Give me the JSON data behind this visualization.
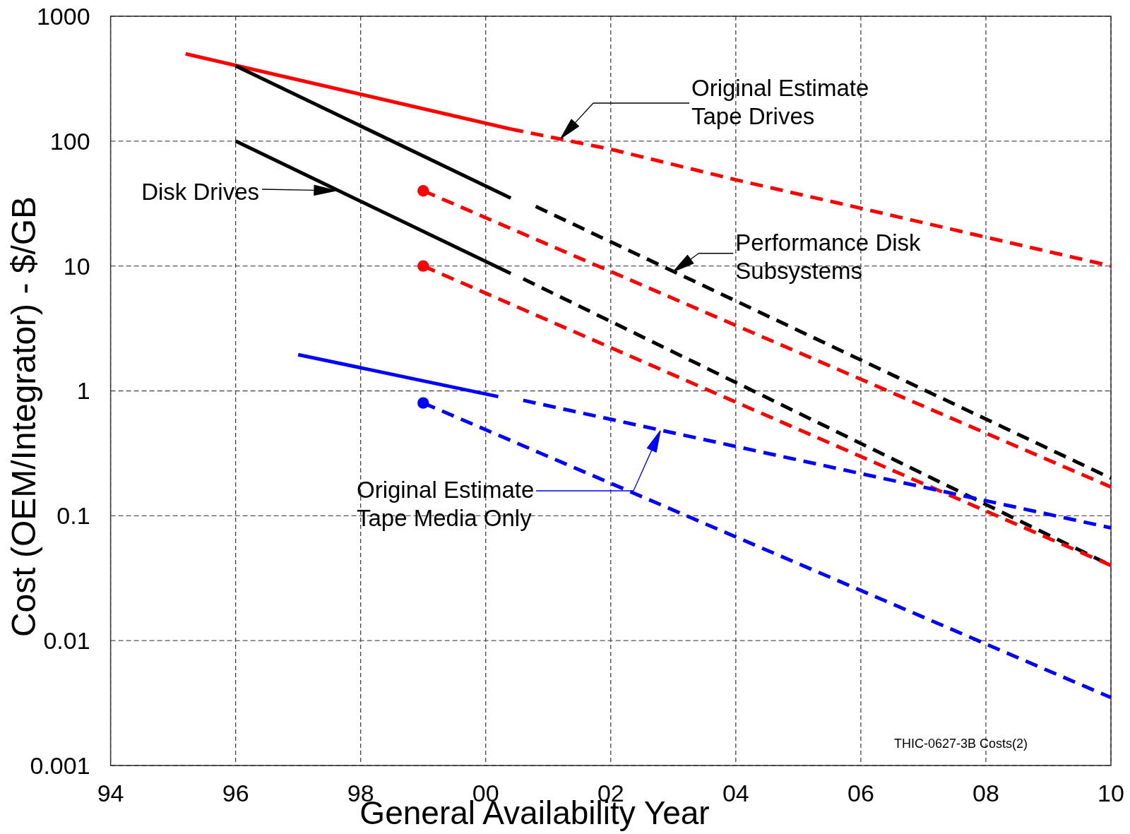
{
  "chart_data": {
    "type": "line",
    "xlabel": "General Availability Year",
    "ylabel": "Cost (OEM/Integrator) - $/GB",
    "log": "y",
    "grid": true,
    "xlim": [
      1994,
      2010
    ],
    "xticks": [
      {
        "value": 1994,
        "label": "94"
      },
      {
        "value": 1996,
        "label": "96"
      },
      {
        "value": 1998,
        "label": "98"
      },
      {
        "value": 2000,
        "label": "00"
      },
      {
        "value": 2002,
        "label": "02"
      },
      {
        "value": 2004,
        "label": "04"
      },
      {
        "value": 2006,
        "label": "06"
      },
      {
        "value": 2008,
        "label": "08"
      },
      {
        "value": 2010,
        "label": "10"
      }
    ],
    "ylim": [
      0.001,
      1000
    ],
    "yticks": [
      0.001,
      0.01,
      0.1,
      1,
      10,
      100,
      1000
    ],
    "series": [
      {
        "color": "#ff0000",
        "line_style": "solid",
        "x": [
          1995.2,
          2000.4
        ],
        "values": [
          500,
          125
        ]
      },
      {
        "color": "#ff0000",
        "line_style": "dashed",
        "x": [
          2000.4,
          2002,
          2004,
          2006,
          2008,
          2010
        ],
        "values": [
          125,
          86,
          49,
          29,
          17,
          10
        ]
      },
      {
        "color": "#000000",
        "line_style": "solid",
        "x": [
          1996,
          2000.4
        ],
        "values": [
          400,
          35
        ]
      },
      {
        "color": "#000000",
        "line_style": "dashed",
        "x": [
          2000.8,
          2010
        ],
        "values": [
          30,
          0.2
        ]
      },
      {
        "color": "#000000",
        "line_style": "solid",
        "x": [
          1996,
          2000.4
        ],
        "values": [
          100,
          8.7
        ]
      },
      {
        "color": "#000000",
        "line_style": "dashed",
        "x": [
          2000.6,
          2010
        ],
        "values": [
          7.9,
          0.04
        ]
      },
      {
        "color": "#ff0000",
        "line_style": "dashed",
        "x": [
          1999,
          2010
        ],
        "values": [
          40,
          0.17
        ]
      },
      {
        "color": "#ff0000",
        "line_style": "dashed",
        "x": [
          1999,
          2010
        ],
        "values": [
          10,
          0.04
        ]
      },
      {
        "color": "#0000ff",
        "line_style": "solid",
        "x": [
          1997,
          2000.2
        ],
        "values": [
          1.95,
          0.9
        ]
      },
      {
        "color": "#0000ff",
        "line_style": "dashed",
        "x": [
          2000.6,
          2010
        ],
        "values": [
          0.84,
          0.08
        ]
      },
      {
        "color": "#0000ff",
        "line_style": "dashed",
        "x": [
          1999,
          2010
        ],
        "values": [
          0.8,
          0.0035
        ]
      },
      {
        "type": "scatter",
        "color": "#ff0000",
        "marker": "circle",
        "x": [
          1999,
          1999
        ],
        "values": [
          40,
          10
        ]
      },
      {
        "type": "scatter",
        "color": "#0000ff",
        "marker": "circle",
        "x": [
          1999
        ],
        "values": [
          0.8
        ]
      }
    ],
    "annotations": [
      "Original Estimate\nTape Drives",
      "Disk Drives",
      {
        "text": "Performance Disk\nSubsystems",
        "x": 2003,
        "y": 9
      },
      "Original Estimate\nTape Media Only",
      "THIC-0627-3B Costs(2)"
    ]
  }
}
